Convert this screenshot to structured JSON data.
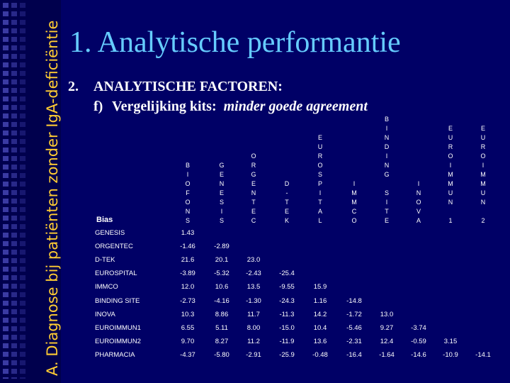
{
  "sidebar": {
    "vertical_title": "A. Diagnose bij patiënten zonder IgA-deficiëntie"
  },
  "header": {
    "title": "1. Analytische performantie",
    "subtitle_num": "2.",
    "subtitle_line1": "ANALYTISCHE FACTOREN:",
    "subtitle_letter": "f)",
    "subtitle_line2": "Vergelijking kits:",
    "subtitle_italic": "minder goede agreement"
  },
  "table": {
    "bias_label": "Bias",
    "columns": [
      [
        "B",
        "I",
        "O",
        "F",
        "O",
        "N",
        "S"
      ],
      [
        "G",
        "E",
        "N",
        "E",
        "S",
        "I",
        "S"
      ],
      [
        "O",
        "R",
        "G",
        "E",
        "N",
        "T",
        "E",
        "C"
      ],
      [
        "D",
        "-",
        "T",
        "E",
        "K"
      ],
      [
        "E",
        "U",
        "R",
        "O",
        "S",
        "P",
        "I",
        "T",
        "A",
        "L"
      ],
      [
        "I",
        "M",
        "M",
        "C",
        "O"
      ],
      [
        "B",
        "I",
        "N",
        "D",
        "I",
        "N",
        "G",
        "",
        "S",
        "I",
        "T",
        "E"
      ],
      [
        "I",
        "N",
        "O",
        "V",
        "A"
      ],
      [
        "E",
        "U",
        "R",
        "O",
        "I",
        "M",
        "M",
        "U",
        "N",
        "",
        "1"
      ],
      [
        "E",
        "U",
        "R",
        "O",
        "I",
        "M",
        "M",
        "U",
        "N",
        "",
        "2"
      ]
    ],
    "rows": [
      {
        "label": "GENESIS",
        "values": [
          "1.43"
        ]
      },
      {
        "label": "ORGENTEC",
        "values": [
          "-1.46",
          "-2.89"
        ]
      },
      {
        "label": "D-TEK",
        "values": [
          "21.6",
          "20.1",
          "23.0"
        ]
      },
      {
        "label": "EUROSPITAL",
        "values": [
          "-3.89",
          "-5.32",
          "-2.43",
          "-25.4"
        ]
      },
      {
        "label": "IMMCO",
        "values": [
          "12.0",
          "10.6",
          "13.5",
          "-9.55",
          "15.9"
        ]
      },
      {
        "label": "BINDING SITE",
        "values": [
          "-2.73",
          "-4.16",
          "-1.30",
          "-24.3",
          "1.16",
          "-14.8"
        ]
      },
      {
        "label": "INOVA",
        "values": [
          "10.3",
          "8.86",
          "11.7",
          "-11.3",
          "14.2",
          "-1.72",
          "13.0"
        ]
      },
      {
        "label": "EUROIMMUN1",
        "values": [
          "6.55",
          "5.11",
          "8.00",
          "-15.0",
          "10.4",
          "-5.46",
          "9.27",
          "-3.74"
        ]
      },
      {
        "label": "EUROIMMUN2",
        "values": [
          "9.70",
          "8.27",
          "11.2",
          "-11.9",
          "13.6",
          "-2.31",
          "12.4",
          "-0.59",
          "3.15"
        ]
      },
      {
        "label": "PHARMACIA",
        "values": [
          "-4.37",
          "-5.80",
          "-2.91",
          "-25.9",
          "-0.48",
          "-16.4",
          "-1.64",
          "-14.6",
          "-10.9",
          "-14.1"
        ]
      }
    ]
  }
}
